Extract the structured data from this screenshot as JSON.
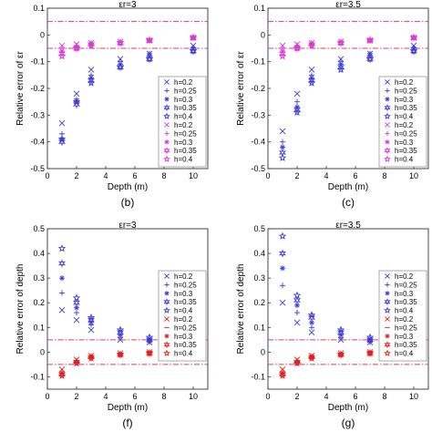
{
  "chart_data": [
    {
      "type": "scatter",
      "title": "εr=3",
      "panel_label": "(b)",
      "xlabel": "Depth (m)",
      "ylabel": "Relative error of εr",
      "xlim": [
        0,
        11
      ],
      "ylim": [
        -0.5,
        0.1
      ],
      "xticks": [
        0,
        2,
        4,
        6,
        8,
        10
      ],
      "yticks": [
        -0.5,
        -0.4,
        -0.3,
        -0.2,
        -0.1,
        0,
        0.1
      ],
      "ytick_labels": [
        "-0.5",
        "-0.4",
        "-0.3",
        "-0.2",
        "-0.1",
        "0",
        "0.1"
      ],
      "ref_lines": [
        0.05,
        -0.05
      ],
      "legend_position": "lower-right",
      "x": [
        1,
        2,
        3,
        5,
        7,
        10
      ],
      "series": [
        {
          "name": "h=0.2",
          "marker": "x",
          "color": "#3b3bd4",
          "values": [
            -0.33,
            -0.22,
            -0.13,
            -0.09,
            -0.07,
            -0.04
          ]
        },
        {
          "name": "h=0.25",
          "marker": "plus",
          "color": "#3b3bd4",
          "values": [
            -0.37,
            -0.24,
            -0.15,
            -0.1,
            -0.07,
            -0.05
          ]
        },
        {
          "name": "h=0.3",
          "marker": "star",
          "color": "#3b3bd4",
          "values": [
            -0.39,
            -0.25,
            -0.16,
            -0.11,
            -0.08,
            -0.05
          ]
        },
        {
          "name": "h=0.35",
          "marker": "hexagram",
          "color": "#3b3bd4",
          "values": [
            -0.4,
            -0.26,
            -0.17,
            -0.12,
            -0.09,
            -0.06
          ]
        },
        {
          "name": "h=0.4",
          "marker": "pentagram",
          "color": "#3b3bd4",
          "values": [
            -0.39,
            -0.25,
            -0.18,
            -0.12,
            -0.09,
            -0.06
          ]
        },
        {
          "name": "h=0.2",
          "marker": "x",
          "color": "#d83ad8",
          "values": [
            -0.04,
            -0.035,
            -0.03,
            -0.025,
            -0.02,
            -0.01
          ]
        },
        {
          "name": "h=0.25",
          "marker": "plus",
          "color": "#d83ad8",
          "values": [
            -0.05,
            -0.04,
            -0.03,
            -0.025,
            -0.02,
            -0.01
          ]
        },
        {
          "name": "h=0.3",
          "marker": "star",
          "color": "#d83ad8",
          "values": [
            -0.06,
            -0.045,
            -0.035,
            -0.025,
            -0.02,
            -0.01
          ]
        },
        {
          "name": "h=0.35",
          "marker": "hexagram",
          "color": "#d83ad8",
          "values": [
            -0.07,
            -0.05,
            -0.035,
            -0.03,
            -0.02,
            -0.01
          ]
        },
        {
          "name": "h=0.4",
          "marker": "pentagram",
          "color": "#d83ad8",
          "values": [
            -0.08,
            -0.05,
            -0.04,
            -0.03,
            -0.02,
            -0.01
          ]
        }
      ]
    },
    {
      "type": "scatter",
      "title": "εr=3.5",
      "panel_label": "(c)",
      "xlabel": "Depth (m)",
      "ylabel": "Relative error of εr",
      "xlim": [
        0,
        11
      ],
      "ylim": [
        -0.5,
        0.1
      ],
      "xticks": [
        0,
        2,
        4,
        6,
        8,
        10
      ],
      "yticks": [
        -0.5,
        -0.4,
        -0.3,
        -0.2,
        -0.1,
        0,
        0.1
      ],
      "ytick_labels": [
        "-0.5",
        "-0.4",
        "-0.3",
        "-0.2",
        "-0.1",
        "0",
        "0.1"
      ],
      "ref_lines": [
        0.05,
        -0.05
      ],
      "legend_position": "lower-right",
      "x": [
        1,
        2,
        3,
        5,
        7,
        10
      ],
      "series": [
        {
          "name": "h=0.2",
          "marker": "x",
          "color": "#3b3bd4",
          "values": [
            -0.36,
            -0.22,
            -0.13,
            -0.09,
            -0.07,
            -0.04
          ]
        },
        {
          "name": "h=0.25",
          "marker": "plus",
          "color": "#3b3bd4",
          "values": [
            -0.4,
            -0.25,
            -0.15,
            -0.1,
            -0.07,
            -0.05
          ]
        },
        {
          "name": "h=0.3",
          "marker": "star",
          "color": "#3b3bd4",
          "values": [
            -0.42,
            -0.27,
            -0.16,
            -0.11,
            -0.08,
            -0.05
          ]
        },
        {
          "name": "h=0.35",
          "marker": "hexagram",
          "color": "#3b3bd4",
          "values": [
            -0.44,
            -0.28,
            -0.17,
            -0.12,
            -0.09,
            -0.06
          ]
        },
        {
          "name": "h=0.4",
          "marker": "pentagram",
          "color": "#3b3bd4",
          "values": [
            -0.46,
            -0.29,
            -0.18,
            -0.13,
            -0.09,
            -0.06
          ]
        },
        {
          "name": "h=0.2",
          "marker": "x",
          "color": "#d83ad8",
          "values": [
            -0.04,
            -0.035,
            -0.03,
            -0.025,
            -0.02,
            -0.01
          ]
        },
        {
          "name": "h=0.25",
          "marker": "plus",
          "color": "#d83ad8",
          "values": [
            -0.05,
            -0.04,
            -0.03,
            -0.025,
            -0.02,
            -0.01
          ]
        },
        {
          "name": "h=0.3",
          "marker": "star",
          "color": "#d83ad8",
          "values": [
            -0.06,
            -0.045,
            -0.035,
            -0.025,
            -0.02,
            -0.01
          ]
        },
        {
          "name": "h=0.35",
          "marker": "hexagram",
          "color": "#d83ad8",
          "values": [
            -0.07,
            -0.05,
            -0.035,
            -0.03,
            -0.02,
            -0.01
          ]
        },
        {
          "name": "h=0.4",
          "marker": "pentagram",
          "color": "#d83ad8",
          "values": [
            -0.08,
            -0.05,
            -0.04,
            -0.03,
            -0.02,
            -0.01
          ]
        }
      ]
    },
    {
      "type": "scatter",
      "title": "εr=3",
      "panel_label": "(f)",
      "xlabel": "Depth (m)",
      "ylabel": "Relative error of depth",
      "xlim": [
        0,
        11
      ],
      "ylim": [
        -0.15,
        0.5
      ],
      "xticks": [
        0,
        2,
        4,
        6,
        8,
        10
      ],
      "yticks": [
        -0.1,
        0,
        0.1,
        0.2,
        0.3,
        0.4,
        0.5
      ],
      "ytick_labels": [
        "-0.1",
        "0",
        "0.1",
        "0.2",
        "0.3",
        "0.4",
        "0.5"
      ],
      "ref_lines": [
        0.05,
        -0.05
      ],
      "legend_position": "right",
      "x": [
        1,
        2,
        3,
        5,
        7,
        10
      ],
      "series": [
        {
          "name": "h=0.2",
          "marker": "x",
          "color": "#3b3bd4",
          "values": [
            0.17,
            0.13,
            0.09,
            0.05,
            0.04,
            0.03
          ]
        },
        {
          "name": "h=0.25",
          "marker": "plus",
          "color": "#3b3bd4",
          "values": [
            0.24,
            0.16,
            0.11,
            0.06,
            0.04,
            0.03
          ]
        },
        {
          "name": "h=0.3",
          "marker": "star",
          "color": "#3b3bd4",
          "values": [
            0.3,
            0.18,
            0.12,
            0.07,
            0.05,
            0.04
          ]
        },
        {
          "name": "h=0.35",
          "marker": "hexagram",
          "color": "#3b3bd4",
          "values": [
            0.36,
            0.2,
            0.13,
            0.08,
            0.05,
            0.04
          ]
        },
        {
          "name": "h=0.4",
          "marker": "pentagram",
          "color": "#3b3bd4",
          "values": [
            0.42,
            0.22,
            0.14,
            0.09,
            0.06,
            0.05
          ]
        },
        {
          "name": "h=0.2",
          "marker": "x",
          "color": "#e02020",
          "values": [
            -0.07,
            -0.03,
            -0.015,
            -0.005,
            0,
            0
          ]
        },
        {
          "name": "h=0.25",
          "marker": "dash",
          "color": "#e02020",
          "values": [
            -0.08,
            -0.035,
            -0.02,
            -0.008,
            -0.002,
            0
          ]
        },
        {
          "name": "h=0.3",
          "marker": "star",
          "color": "#e02020",
          "values": [
            -0.085,
            -0.04,
            -0.02,
            -0.01,
            -0.003,
            0
          ]
        },
        {
          "name": "h=0.35",
          "marker": "hexagram",
          "color": "#e02020",
          "values": [
            -0.09,
            -0.04,
            -0.02,
            -0.01,
            -0.004,
            -0.002
          ]
        },
        {
          "name": "h=0.4",
          "marker": "pentagram",
          "color": "#e02020",
          "values": [
            -0.095,
            -0.045,
            -0.025,
            -0.01,
            -0.005,
            -0.002
          ]
        }
      ]
    },
    {
      "type": "scatter",
      "title": "εr=3.5",
      "panel_label": "(g)",
      "xlabel": "Depth (m)",
      "ylabel": "Relative error of depth",
      "xlim": [
        0,
        11
      ],
      "ylim": [
        -0.15,
        0.5
      ],
      "xticks": [
        0,
        2,
        4,
        6,
        8,
        10
      ],
      "yticks": [
        -0.1,
        0,
        0.1,
        0.2,
        0.3,
        0.4,
        0.5
      ],
      "ytick_labels": [
        "-0.1",
        "0",
        "0.1",
        "0.2",
        "0.3",
        "0.4",
        "0.5"
      ],
      "ref_lines": [
        0.05,
        -0.05
      ],
      "legend_position": "right",
      "x": [
        1,
        2,
        3,
        5,
        7,
        10
      ],
      "series": [
        {
          "name": "h=0.2",
          "marker": "x",
          "color": "#3b3bd4",
          "values": [
            0.2,
            0.12,
            0.08,
            0.05,
            0.04,
            0.03
          ]
        },
        {
          "name": "h=0.25",
          "marker": "plus",
          "color": "#3b3bd4",
          "values": [
            0.27,
            0.16,
            0.1,
            0.06,
            0.04,
            0.03
          ]
        },
        {
          "name": "h=0.3",
          "marker": "star",
          "color": "#3b3bd4",
          "values": [
            0.34,
            0.19,
            0.12,
            0.07,
            0.05,
            0.04
          ]
        },
        {
          "name": "h=0.35",
          "marker": "hexagram",
          "color": "#3b3bd4",
          "values": [
            0.4,
            0.21,
            0.14,
            0.08,
            0.05,
            0.04
          ]
        },
        {
          "name": "h=0.4",
          "marker": "pentagram",
          "color": "#3b3bd4",
          "values": [
            0.47,
            0.23,
            0.15,
            0.09,
            0.06,
            0.05
          ]
        },
        {
          "name": "h=0.2",
          "marker": "x",
          "color": "#e02020",
          "values": [
            -0.07,
            -0.03,
            -0.015,
            -0.005,
            0,
            0
          ]
        },
        {
          "name": "h=0.25",
          "marker": "dash",
          "color": "#e02020",
          "values": [
            -0.08,
            -0.035,
            -0.02,
            -0.008,
            -0.002,
            0
          ]
        },
        {
          "name": "h=0.3",
          "marker": "star",
          "color": "#e02020",
          "values": [
            -0.085,
            -0.04,
            -0.02,
            -0.01,
            -0.003,
            0
          ]
        },
        {
          "name": "h=0.35",
          "marker": "hexagram",
          "color": "#e02020",
          "values": [
            -0.09,
            -0.04,
            -0.02,
            -0.01,
            -0.004,
            -0.002
          ]
        },
        {
          "name": "h=0.4",
          "marker": "pentagram",
          "color": "#e02020",
          "values": [
            -0.095,
            -0.045,
            -0.025,
            -0.01,
            -0.005,
            -0.002
          ]
        }
      ]
    }
  ],
  "colors": {
    "axis": "#333333",
    "ref_line": "#d84060",
    "legend_border": "#888888"
  }
}
